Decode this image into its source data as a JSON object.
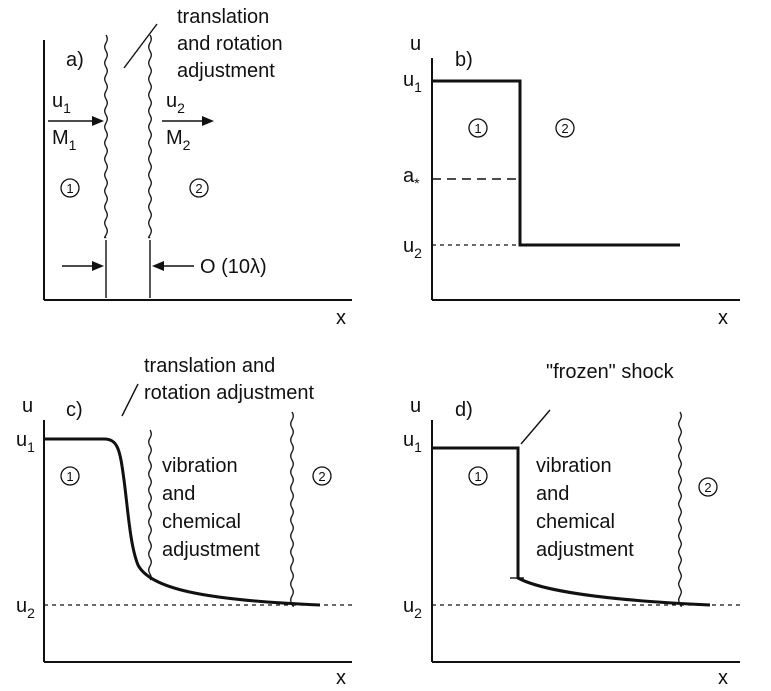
{
  "panel_a": {
    "label": "a)",
    "note_line1": "translation",
    "note_line2": "and rotation",
    "note_line3": "adjustment",
    "u1_base": "u",
    "u1_sub": "1",
    "M1_base": "M",
    "M1_sub": "1",
    "u2_base": "u",
    "u2_sub": "2",
    "M2_base": "M",
    "M2_sub": "2",
    "region1": "1",
    "region2": "2",
    "thickness": "O (10λ)",
    "xlabel": "x"
  },
  "panel_b": {
    "label": "b)",
    "ylabel": "u",
    "u1_base": "u",
    "u1_sub": "1",
    "astar_base": "a",
    "astar_sub": "*",
    "u2_base": "u",
    "u2_sub": "2",
    "region1": "1",
    "region2": "2",
    "xlabel": "x"
  },
  "panel_c": {
    "label": "c)",
    "ylabel": "u",
    "note_line1": "translation and",
    "note_line2": "rotation adjustment",
    "u1_base": "u",
    "u1_sub": "1",
    "u2_base": "u",
    "u2_sub": "2",
    "region1": "1",
    "region2": "2",
    "mid_line1": "vibration",
    "mid_line2": "and",
    "mid_line3": "chemical",
    "mid_line4": "adjustment",
    "xlabel": "x"
  },
  "panel_d": {
    "label": "d)",
    "ylabel": "u",
    "note": "\"frozen\" shock",
    "u1_base": "u",
    "u1_sub": "1",
    "u2_base": "u",
    "u2_sub": "2",
    "region1": "1",
    "region2": "2",
    "mid_line1": "vibration",
    "mid_line2": "and",
    "mid_line3": "chemical",
    "mid_line4": "adjustment",
    "xlabel": "x"
  }
}
